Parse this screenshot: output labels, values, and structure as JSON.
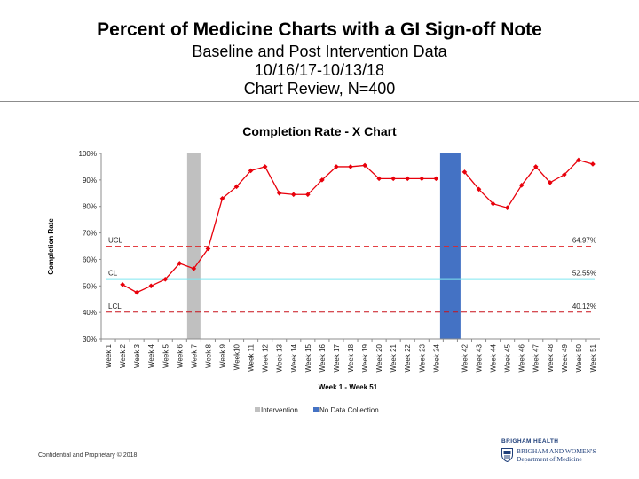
{
  "slide": {
    "title": "Percent of Medicine Charts with a GI Sign-off Note",
    "subtitle_lines": [
      "Baseline and Post Intervention Data",
      "10/16/17-10/13/18",
      "Chart Review, N=400"
    ]
  },
  "footer": {
    "confidential": "Confidential and Proprietary © 2018",
    "logo_top": "BRIGHAM HEALTH",
    "logo_line1": "BRIGHAM AND WOMEN'S",
    "logo_line2": "Department of Medicine"
  },
  "chart_data": {
    "type": "line",
    "title": "Completion Rate - X Chart",
    "xlabel": "Week 1 - Week 51",
    "ylabel": "Completion Rate",
    "ylim": [
      30,
      100
    ],
    "yticks": [
      "30%",
      "40%",
      "50%",
      "60%",
      "70%",
      "80%",
      "90%",
      "100%"
    ],
    "categories": [
      "Week 1",
      "Week 2",
      "Week 3",
      "Week 4",
      "Week 5",
      "Week 6",
      "Week 7",
      "Week 8",
      "Week 9",
      "Week10",
      "Week 11",
      "Week 12",
      "Week 13",
      "Week 14",
      "Week 15",
      "Week 16",
      "Week 17",
      "Week 18",
      "Week 19",
      "Week 20",
      "Week 21",
      "Week 22",
      "Week 23",
      "Week 24",
      "",
      "Week 42",
      "Week 43",
      "Week 44",
      "Week 45",
      "Week 46",
      "Week 47",
      "Week 48",
      "Week 49",
      "Week 50",
      "Week 51"
    ],
    "series": [
      {
        "color": "#e8000b",
        "values": [
          null,
          50.5,
          47.5,
          50,
          52.5,
          58.5,
          56.5,
          64,
          83,
          87.5,
          93.5,
          95,
          85,
          84.5,
          84.5,
          90,
          95,
          95,
          95.5,
          90.5,
          90.5,
          90.5,
          90.5,
          90.5,
          null,
          93,
          86.5,
          81,
          79.5,
          88,
          95,
          89,
          92,
          97.5,
          96
        ]
      }
    ],
    "control_lines": [
      {
        "label": "UCL",
        "value": 64.97,
        "value_label": "64.97%",
        "color": "#e0262a",
        "style": "dashed"
      },
      {
        "label": "CL",
        "value": 52.55,
        "value_label": "52.55%",
        "color": "#7fe6f0",
        "style": "solid"
      },
      {
        "label": "LCL",
        "value": 40.12,
        "value_label": "40.12%",
        "color": "#c8101a",
        "style": "dashed"
      }
    ],
    "bands": [
      {
        "name": "Intervention",
        "category_index": 6,
        "color": "#c0c0c0"
      },
      {
        "name": "No Data Collection",
        "category_index": 24,
        "color": "#4472c4"
      }
    ],
    "legend": {
      "position": "bottom",
      "items": [
        {
          "label": "Intervention",
          "color": "#c0c0c0"
        },
        {
          "label": "No Data Collection",
          "color": "#4472c4"
        }
      ]
    },
    "grid": false
  }
}
